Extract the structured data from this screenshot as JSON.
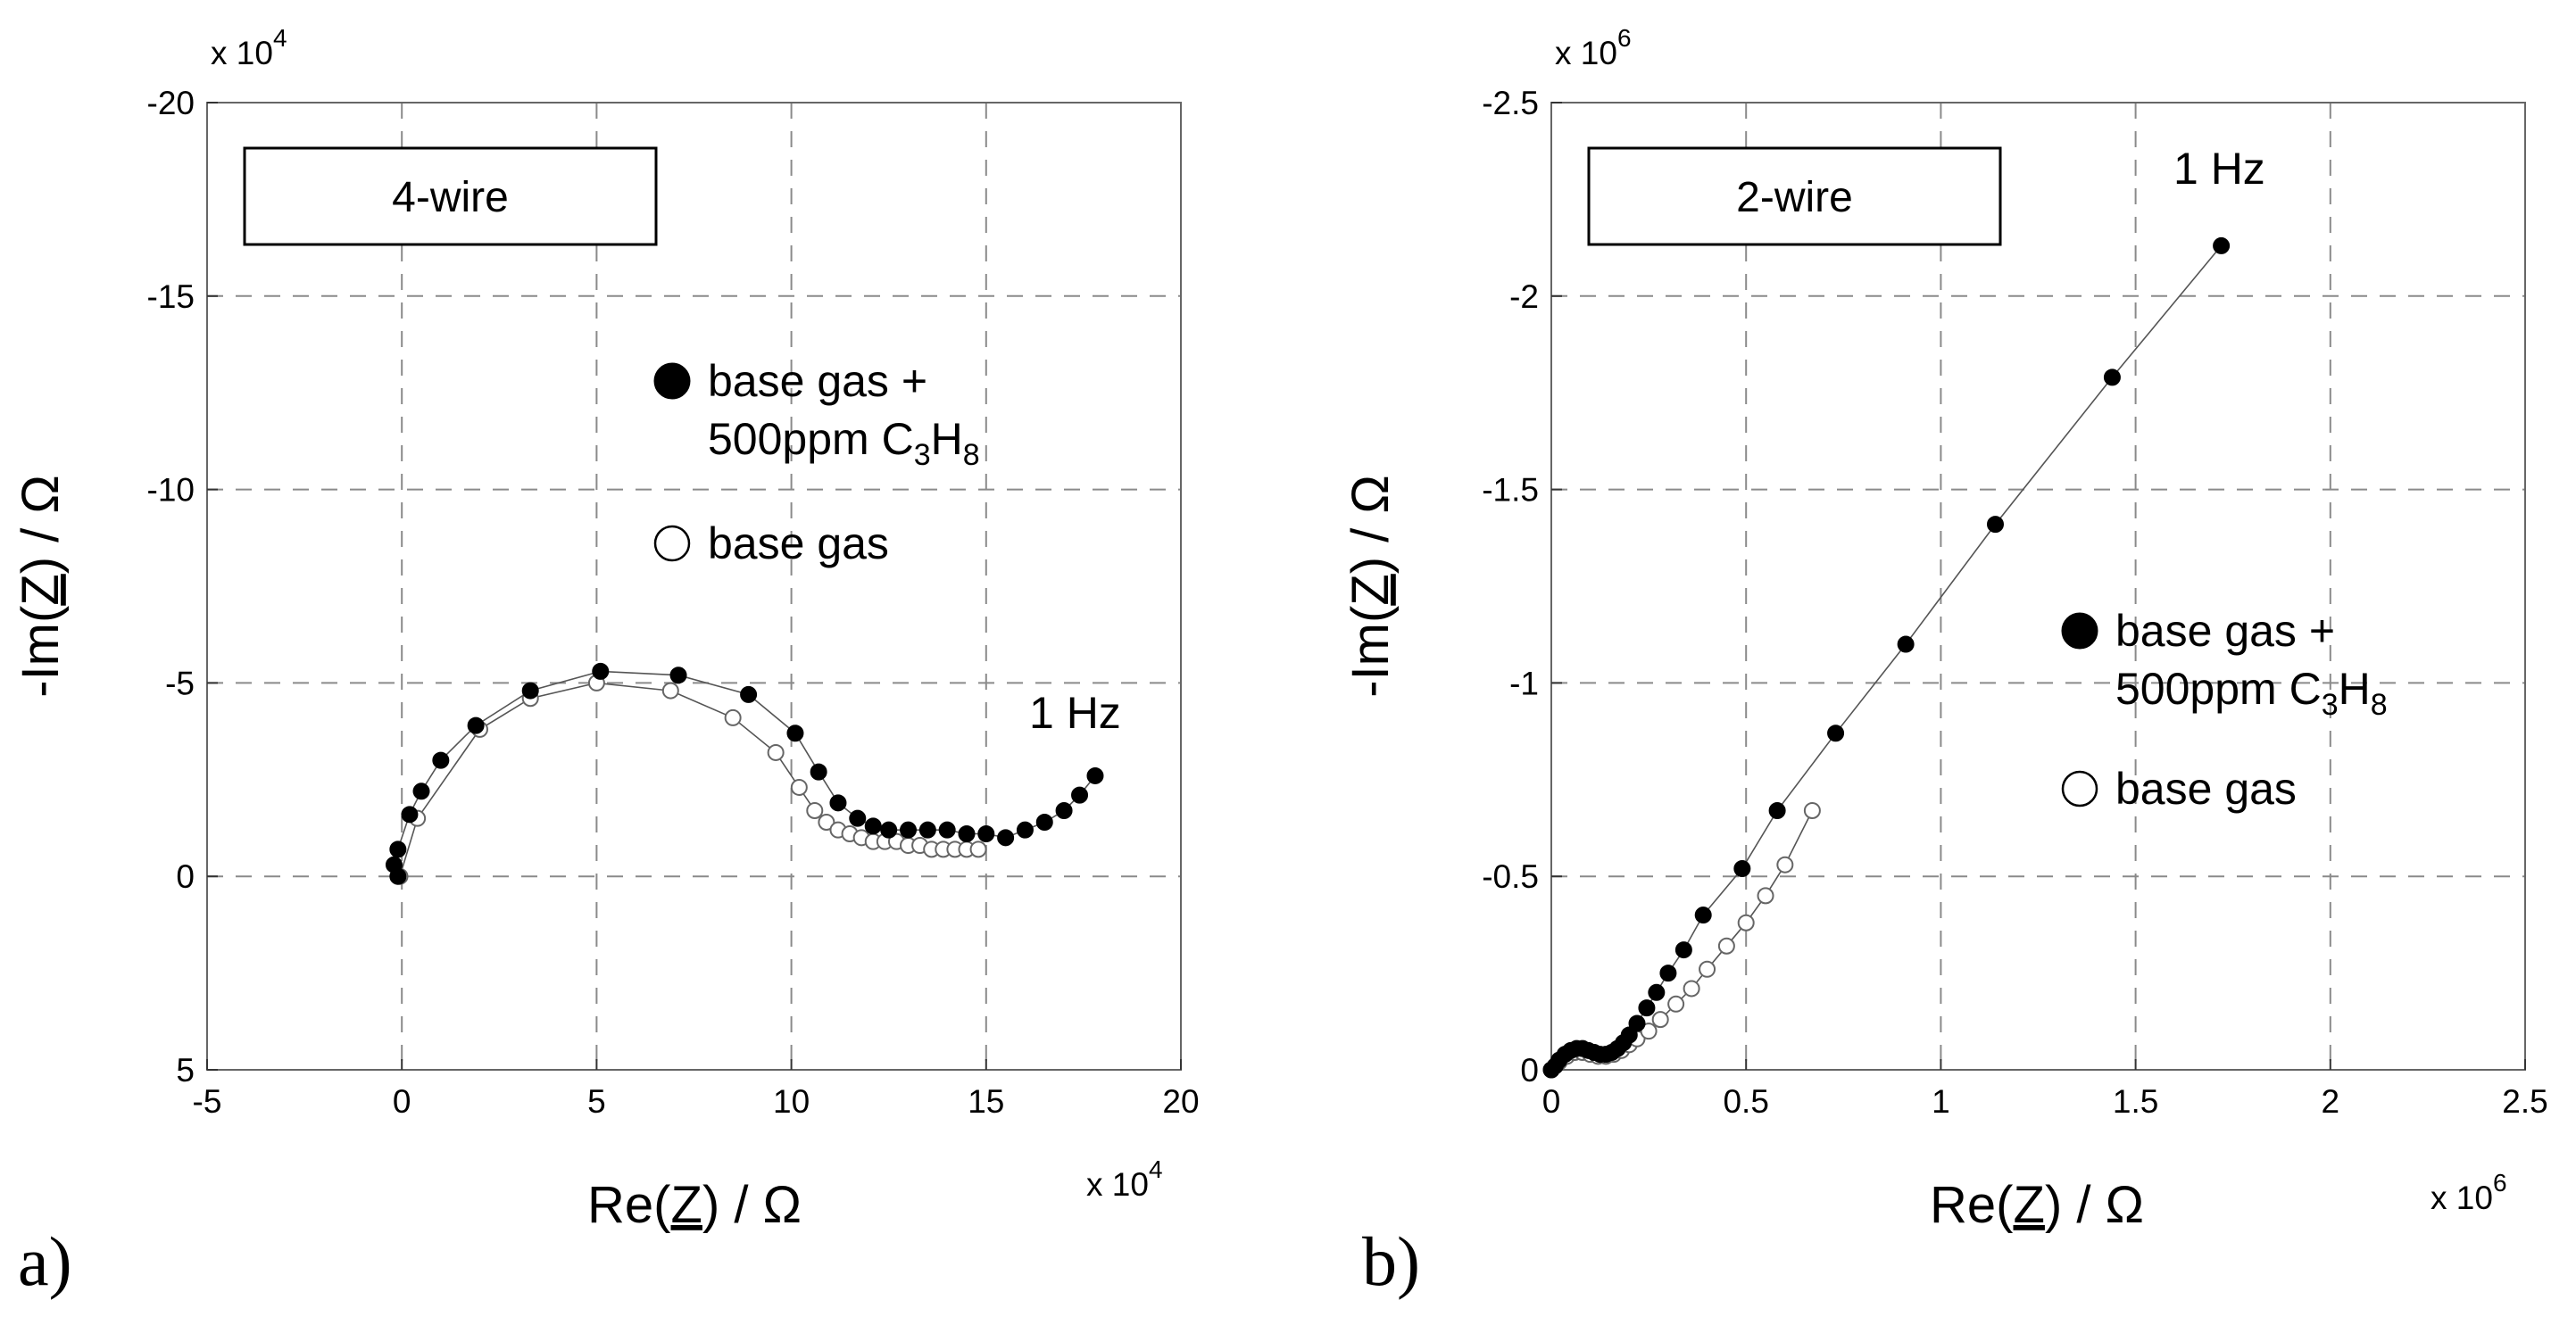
{
  "chart_data": [
    {
      "type": "scatter",
      "panel_label": "a)",
      "box_label": "4-wire",
      "annotation": "1 Hz",
      "xlabel": "Re(Z) / Ω",
      "ylabel": "-Im(Z) / Ω",
      "xlabel_parts": [
        "Re(",
        "Z",
        ") / Ω"
      ],
      "ylabel_parts": [
        "-Im(",
        "Z",
        ") / Ω"
      ],
      "x_multiplier": "x 10",
      "x_multiplier_exp": "4",
      "y_multiplier": "x 10",
      "y_multiplier_exp": "4",
      "xlim": [
        -5,
        20
      ],
      "ylim": [
        5,
        -20
      ],
      "xticks": [
        "-5",
        "0",
        "5",
        "10",
        "15",
        "20"
      ],
      "yticks": [
        "-20",
        "-15",
        "-10",
        "-5",
        "0",
        "5"
      ],
      "grid": true,
      "legend_position": "upper-middle",
      "series": [
        {
          "name": "base gas + 500ppm C3H8",
          "legend_main": "base gas +",
          "legend_sub": [
            "500ppm C",
            "3",
            "H",
            "8"
          ],
          "marker": "filled-circle",
          "x": [
            -0.1,
            -0.2,
            -0.1,
            0.2,
            0.5,
            1.0,
            1.9,
            3.3,
            5.1,
            7.1,
            8.9,
            10.1,
            10.7,
            11.2,
            11.7,
            12.1,
            12.5,
            13.0,
            13.5,
            14.0,
            14.5,
            15.0,
            15.5,
            16.0,
            16.5,
            17.0,
            17.4,
            17.8
          ],
          "y": [
            0.0,
            -0.3,
            -0.7,
            -1.6,
            -2.2,
            -3.0,
            -3.9,
            -4.8,
            -5.3,
            -5.2,
            -4.7,
            -3.7,
            -2.7,
            -1.9,
            -1.5,
            -1.3,
            -1.2,
            -1.2,
            -1.2,
            -1.2,
            -1.1,
            -1.1,
            -1.0,
            -1.2,
            -1.4,
            -1.7,
            -2.1,
            -2.6
          ]
        },
        {
          "name": "base gas",
          "legend_main": "base gas",
          "marker": "open-circle",
          "x": [
            -0.05,
            0.4,
            2.0,
            3.3,
            5.0,
            6.9,
            8.5,
            9.6,
            10.2,
            10.6,
            10.9,
            11.2,
            11.5,
            11.8,
            12.1,
            12.4,
            12.7,
            13.0,
            13.3,
            13.6,
            13.9,
            14.2,
            14.5,
            14.8
          ],
          "y": [
            0.0,
            -1.5,
            -3.8,
            -4.6,
            -5.0,
            -4.8,
            -4.1,
            -3.2,
            -2.3,
            -1.7,
            -1.4,
            -1.2,
            -1.1,
            -1.0,
            -0.9,
            -0.9,
            -0.9,
            -0.8,
            -0.8,
            -0.7,
            -0.7,
            -0.7,
            -0.7,
            -0.7
          ]
        }
      ]
    },
    {
      "type": "scatter",
      "panel_label": "b)",
      "box_label": "2-wire",
      "annotation": "1 Hz",
      "xlabel": "Re(Z) / Ω",
      "ylabel": "-Im(Z) / Ω",
      "xlabel_parts": [
        "Re(",
        "Z",
        ") / Ω"
      ],
      "ylabel_parts": [
        "-Im(",
        "Z",
        ") / Ω"
      ],
      "x_multiplier": "x 10",
      "x_multiplier_exp": "6",
      "y_multiplier": "x 10",
      "y_multiplier_exp": "6",
      "xlim": [
        0,
        2.5
      ],
      "ylim": [
        0,
        -2.5
      ],
      "xticks": [
        "0",
        "0.5",
        "1",
        "1.5",
        "2",
        "2.5"
      ],
      "yticks": [
        "-2.5",
        "-2",
        "-1.5",
        "-1",
        "-0.5",
        "0"
      ],
      "grid": true,
      "legend_position": "middle-right",
      "series": [
        {
          "name": "base gas + 500ppm C3H8",
          "legend_main": "base gas +",
          "legend_sub": [
            "500ppm C",
            "3",
            "H",
            "8"
          ],
          "marker": "filled-circle",
          "x": [
            0.0,
            0.01,
            0.02,
            0.035,
            0.05,
            0.065,
            0.08,
            0.095,
            0.11,
            0.125,
            0.14,
            0.155,
            0.17,
            0.185,
            0.2,
            0.22,
            0.245,
            0.27,
            0.3,
            0.34,
            0.39,
            0.49,
            0.58,
            0.73,
            0.91,
            1.14,
            1.44,
            1.72
          ],
          "y": [
            0.0,
            -0.01,
            -0.025,
            -0.04,
            -0.05,
            -0.055,
            -0.055,
            -0.05,
            -0.045,
            -0.04,
            -0.04,
            -0.045,
            -0.055,
            -0.07,
            -0.09,
            -0.12,
            -0.16,
            -0.2,
            -0.25,
            -0.31,
            -0.4,
            -0.52,
            -0.67,
            -0.87,
            -1.1,
            -1.41,
            -1.79,
            -2.13
          ]
        },
        {
          "name": "base gas",
          "legend_main": "base gas",
          "marker": "open-circle",
          "x": [
            0.0,
            0.02,
            0.04,
            0.06,
            0.08,
            0.1,
            0.12,
            0.14,
            0.16,
            0.18,
            0.2,
            0.22,
            0.25,
            0.28,
            0.32,
            0.36,
            0.4,
            0.45,
            0.5,
            0.55,
            0.6,
            0.67
          ],
          "y": [
            0.0,
            -0.02,
            -0.035,
            -0.045,
            -0.045,
            -0.04,
            -0.035,
            -0.035,
            -0.04,
            -0.05,
            -0.065,
            -0.08,
            -0.1,
            -0.13,
            -0.17,
            -0.21,
            -0.26,
            -0.32,
            -0.38,
            -0.45,
            -0.53,
            -0.67
          ]
        }
      ]
    }
  ]
}
